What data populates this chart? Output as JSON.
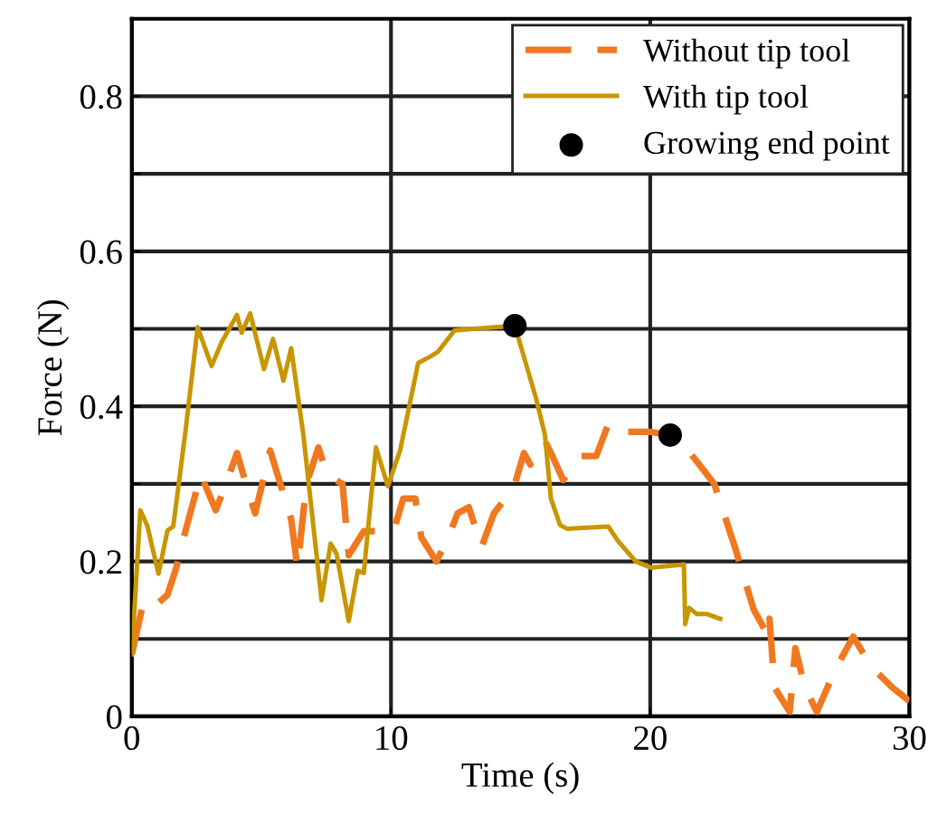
{
  "chart_data": {
    "type": "line",
    "xlabel": "Time (s)",
    "ylabel": "Force (N)",
    "xlim": [
      0,
      30
    ],
    "xticks": [
      0,
      10,
      20,
      30
    ],
    "ylim": [
      0,
      0.9
    ],
    "yticks": [
      0,
      {
        "value": 0.1,
        "label": null
      },
      0.2,
      {
        "value": 0.3,
        "label": null
      },
      0.4,
      {
        "value": 0.5,
        "label": null
      },
      0.6,
      {
        "value": 0.7,
        "label": null
      },
      0.8
    ],
    "grid": true,
    "legend": "top right",
    "series": [
      {
        "name": "Without tip tool",
        "line_style": "dashed",
        "color": "#f07820",
        "x": [
          0,
          0.44,
          0.8,
          1.38,
          1.72,
          2.07,
          2.66,
          3.24,
          3.6,
          4.06,
          4.3,
          4.76,
          5.34,
          6.15,
          6.39,
          6.74,
          7.2,
          7.55,
          8.13,
          8.37,
          8.95,
          10.1,
          10.47,
          10.94,
          11.17,
          11.75,
          12.2,
          12.57,
          13.0,
          13.5,
          13.97,
          14.31,
          14.78,
          15.13,
          15.37,
          15.94,
          16.17,
          16.64,
          17.34,
          17.92,
          18.39,
          18.86,
          19.79,
          20.02,
          20.77,
          21.54,
          22.47,
          23.29,
          23.99,
          24.57,
          24.6,
          24.8,
          25.38,
          25.6,
          25.97,
          26.43,
          27.13,
          27.83,
          28.53,
          29.35,
          30
        ],
        "values": [
          0.08,
          0.146,
          0.14,
          0.157,
          0.192,
          0.239,
          0.312,
          0.266,
          0.297,
          0.34,
          0.312,
          0.262,
          0.343,
          0.254,
          0.192,
          0.3,
          0.347,
          0.31,
          0.3,
          0.208,
          0.239,
          0.239,
          0.281,
          0.281,
          0.231,
          0.2,
          0.23,
          0.262,
          0.27,
          0.219,
          0.262,
          0.277,
          0.3,
          0.34,
          0.325,
          0.355,
          0.34,
          0.305,
          0.336,
          0.336,
          0.378,
          0.367,
          0.367,
          0.367,
          0.363,
          0.34,
          0.3,
          0.216,
          0.138,
          0.103,
          0.126,
          0.037,
          0.006,
          0.088,
          0.037,
          0.006,
          0.06,
          0.103,
          0.064,
          0.037,
          0.02
        ]
      },
      {
        "name": "With tip tool",
        "line_style": "solid",
        "color": "#c89600",
        "x": [
          0,
          0.33,
          0.6,
          1.03,
          1.38,
          1.6,
          2.08,
          2.54,
          3.08,
          3.47,
          4.06,
          4.24,
          4.57,
          5.1,
          5.45,
          5.85,
          6.15,
          6.62,
          7.32,
          7.67,
          7.9,
          8.37,
          8.72,
          8.95,
          9.42,
          9.88,
          10.35,
          11.05,
          11.5,
          11.8,
          12.45,
          13.2,
          14.78,
          14.9,
          15.6,
          15.94,
          16.17,
          16.52,
          16.8,
          18.39,
          18.74,
          19.44,
          20.02,
          21.3,
          21.35,
          21.5,
          21.8,
          22.2,
          22.7
        ],
        "values": [
          0.08,
          0.266,
          0.246,
          0.184,
          0.24,
          0.245,
          0.37,
          0.502,
          0.452,
          0.483,
          0.518,
          0.495,
          0.52,
          0.448,
          0.487,
          0.433,
          0.475,
          0.363,
          0.15,
          0.223,
          0.21,
          0.123,
          0.188,
          0.185,
          0.347,
          0.297,
          0.343,
          0.456,
          0.464,
          0.47,
          0.498,
          0.5,
          0.504,
          0.49,
          0.41,
          0.363,
          0.281,
          0.247,
          0.242,
          0.245,
          0.227,
          0.2,
          0.192,
          0.196,
          0.119,
          0.14,
          0.132,
          0.132,
          0.126
        ]
      },
      {
        "name": "Growing end point",
        "type": "scatter",
        "marker": "circle",
        "color": "#000000",
        "x": [
          14.78,
          20.77
        ],
        "values": [
          0.504,
          0.363
        ]
      }
    ]
  }
}
